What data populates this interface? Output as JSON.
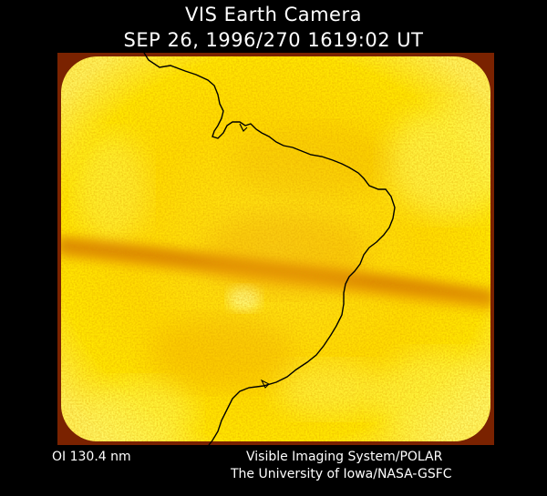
{
  "header": {
    "title": "VIS Earth Camera",
    "timestamp": "SEP 26, 1996/270 1619:02 UT"
  },
  "image": {
    "subject": "auroral-uv-image",
    "palette": {
      "frame": "#7a2200",
      "glow_outer": "#ffe600",
      "glow_inner": "#ffff66",
      "dark_band": "#b34700",
      "coastline": "#000000"
    }
  },
  "footer": {
    "wavelength": "OI  130.4 nm",
    "instrument": "Visible Imaging System/POLAR",
    "credit": "The University of Iowa/NASA-GSFC"
  }
}
